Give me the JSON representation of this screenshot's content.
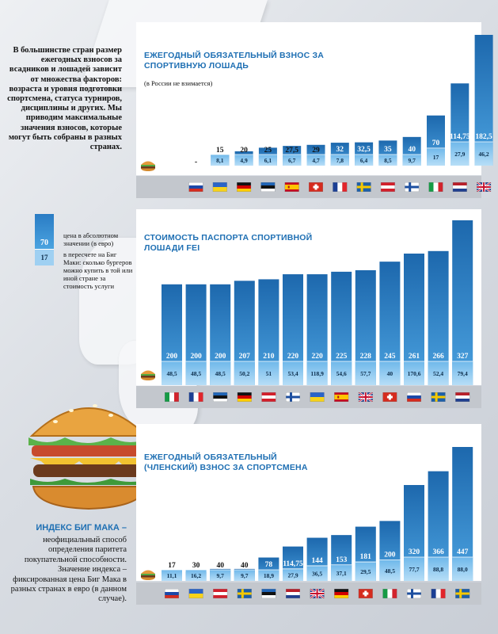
{
  "intro_text": "В большинстве стран размер ежегодных взносов за всадников и лошадей зависит от множества факторов: возраста и уровня подготовки спортсмена, статуса турниров, дисциплины и других. Мы приводим максимальные значения взносов, которые могут быть собраны в разных странах.",
  "legend": {
    "value_top": "70",
    "value_bottom": "17",
    "label_top": "цена в абсолютном значении (в евро)",
    "label_bottom": "в пересчете на Биг Маки: сколько бургеров можно купить в той или иной стране за стоимость услуги"
  },
  "big_mac": {
    "title": "ИНДЕКС БИГ МАКА –",
    "text": "неофициальный способ определения паритета покупательной способности. Значение индекса – фиксированная цена Биг Мака в разных странах в евро (в данном случае)."
  },
  "colors": {
    "bar_dark": "#1f6fb5",
    "bar_light": "#7cc0ee",
    "title": "#1e6fb3"
  },
  "chart_data": [
    {
      "type": "bar",
      "title": "ЕЖЕГОДНЫЙ ОБЯЗАТЕЛЬНЫЙ ВЗНОС ЗА СПОРТИВНУЮ ЛОШАДЬ",
      "subtitle": "(в России не взимается)",
      "categories": [
        "russia",
        "ukraine",
        "germany",
        "estonia",
        "spain",
        "switzerland",
        "france",
        "sweden",
        "austria",
        "finland",
        "italy",
        "netherlands",
        "uk"
      ],
      "values_label": [
        "-",
        "15",
        "20",
        "25",
        "27,5",
        "29",
        "32",
        "32,5",
        "35",
        "40",
        "70",
        "114,75",
        "182,5"
      ],
      "values": [
        0,
        15,
        20,
        25,
        27.5,
        29,
        32,
        32.5,
        35,
        40,
        70,
        114.75,
        182.5
      ],
      "bigmac_label": [
        "",
        "8,1",
        "4,9",
        "6,1",
        "6,7",
        "4,7",
        "7,8",
        "6,4",
        "8,5",
        "9,7",
        "17",
        "27,9",
        "46,2"
      ],
      "bigmac": [
        0,
        8.1,
        4.9,
        6.1,
        6.7,
        4.7,
        7.8,
        6.4,
        8.5,
        9.7,
        17,
        27.9,
        46.2
      ]
    },
    {
      "type": "bar",
      "title": "СТОИМОСТЬ ПАСПОРТА СПОРТИВНОЙ ЛОШАДИ FEI",
      "categories": [
        "italy",
        "france",
        "estonia",
        "germany",
        "austria",
        "finland",
        "ukraine",
        "spain",
        "uk",
        "switzerland",
        "russia",
        "sweden",
        "netherlands"
      ],
      "values_label": [
        "200",
        "200",
        "200",
        "207",
        "210",
        "220",
        "220",
        "225",
        "228",
        "245",
        "261",
        "266",
        "327"
      ],
      "values": [
        200,
        200,
        200,
        207,
        210,
        220,
        220,
        225,
        228,
        245,
        261,
        266,
        327
      ],
      "bigmac_label": [
        "48,5",
        "48,5",
        "48,5",
        "50,2",
        "51",
        "53,4",
        "118,9",
        "54,6",
        "57,7",
        "40",
        "170,6",
        "52,4",
        "79,4"
      ],
      "bigmac": [
        48.5,
        48.5,
        48.5,
        50.2,
        51,
        53.4,
        118.9,
        54.6,
        57.7,
        40,
        170.6,
        52.4,
        79.4
      ]
    },
    {
      "type": "bar",
      "title": "ЕЖЕГОДНЫЙ ОБЯЗАТЕЛЬНЫЙ (ЧЛЕНСКИЙ) ВЗНОС ЗА СПОРТСМЕНА",
      "categories": [
        "russia",
        "ukraine",
        "austria",
        "sweden",
        "estonia",
        "netherlands",
        "uk",
        "germany",
        "switzerland",
        "italy",
        "finland",
        "france",
        "sweden2"
      ],
      "values_label": [
        "17",
        "30",
        "40",
        "40",
        "78",
        "114,75",
        "144",
        "153",
        "181",
        "200",
        "320",
        "366",
        "447"
      ],
      "values": [
        17,
        30,
        40,
        40,
        78,
        114.75,
        144,
        153,
        181,
        200,
        320,
        366,
        447
      ],
      "bigmac_label": [
        "11,1",
        "16,2",
        "9,7",
        "9,7",
        "18,9",
        "27,9",
        "36,5",
        "37,1",
        "29,5",
        "48,5",
        "77,7",
        "88,8",
        "88,0"
      ],
      "bigmac": [
        11.1,
        16.2,
        9.7,
        9.7,
        18.9,
        27.9,
        36.5,
        37.1,
        29.5,
        48.5,
        77.7,
        88.8,
        88.0
      ]
    }
  ]
}
